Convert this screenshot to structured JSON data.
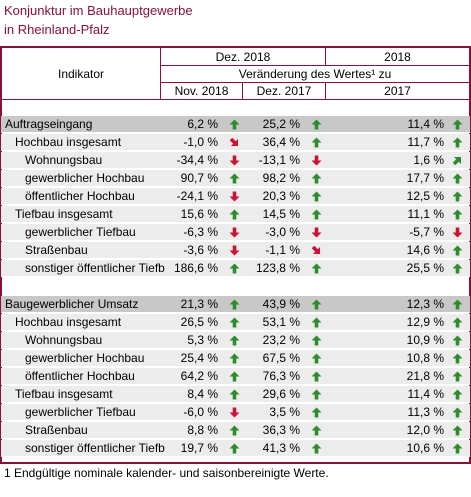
{
  "title": [
    "Konjunktur im Bauhauptgewerbe",
    "in Rheinland-Pfalz"
  ],
  "header": {
    "indicator": "Indikator",
    "period": "Dez. 2018",
    "year": "2018",
    "change": "Veränderung des Wertes¹ zu",
    "columns": [
      "Nov. 2018",
      "Dez. 2017",
      "2017"
    ]
  },
  "sections": [
    {
      "rows": [
        {
          "label": "Auftragseingang",
          "level": 0,
          "cells": [
            {
              "text": "6,2 %",
              "trend": "up"
            },
            {
              "text": "25,2 %",
              "trend": "up"
            },
            {
              "text": "11,4 %",
              "trend": "up"
            }
          ]
        },
        {
          "label": "Hochbau insgesamt",
          "level": 1,
          "cells": [
            {
              "text": "-1,0 %",
              "trend": "down-right"
            },
            {
              "text": "36,4 %",
              "trend": "up"
            },
            {
              "text": "11,7 %",
              "trend": "up"
            }
          ]
        },
        {
          "label": "Wohnungsbau",
          "level": 2,
          "cells": [
            {
              "text": "-34,4 %",
              "trend": "down"
            },
            {
              "text": "-13,1 %",
              "trend": "down"
            },
            {
              "text": "1,6 %",
              "trend": "up-right"
            }
          ]
        },
        {
          "label": "gewerblicher Hochbau",
          "level": 2,
          "cells": [
            {
              "text": "90,7 %",
              "trend": "up"
            },
            {
              "text": "98,2 %",
              "trend": "up"
            },
            {
              "text": "17,7 %",
              "trend": "up"
            }
          ]
        },
        {
          "label": "öffentlicher Hochbau",
          "level": 2,
          "cells": [
            {
              "text": "-24,1 %",
              "trend": "down"
            },
            {
              "text": "20,3 %",
              "trend": "up"
            },
            {
              "text": "12,5 %",
              "trend": "up"
            }
          ]
        },
        {
          "label": "Tiefbau insgesamt",
          "level": 1,
          "cells": [
            {
              "text": "15,6 %",
              "trend": "up"
            },
            {
              "text": "14,5 %",
              "trend": "up"
            },
            {
              "text": "11,1 %",
              "trend": "up"
            }
          ]
        },
        {
          "label": "gewerblicher Tiefbau",
          "level": 2,
          "cells": [
            {
              "text": "-6,3 %",
              "trend": "down"
            },
            {
              "text": "-3,0 %",
              "trend": "down"
            },
            {
              "text": "-5,7 %",
              "trend": "down"
            }
          ]
        },
        {
          "label": "Straßenbau",
          "level": 2,
          "cells": [
            {
              "text": "-3,6 %",
              "trend": "down"
            },
            {
              "text": "-1,1 %",
              "trend": "down-right"
            },
            {
              "text": "14,6 %",
              "trend": "up"
            }
          ]
        },
        {
          "label": "sonstiger öffentlicher Tiefb",
          "level": 2,
          "cells": [
            {
              "text": "186,6 %",
              "trend": "up"
            },
            {
              "text": "123,8 %",
              "trend": "up"
            },
            {
              "text": "25,5 %",
              "trend": "up"
            }
          ]
        }
      ]
    },
    {
      "rows": [
        {
          "label": "Baugewerblicher Umsatz",
          "level": 0,
          "cells": [
            {
              "text": "21,3 %",
              "trend": "up"
            },
            {
              "text": "43,9 %",
              "trend": "up"
            },
            {
              "text": "12,3 %",
              "trend": "up"
            }
          ]
        },
        {
          "label": "Hochbau insgesamt",
          "level": 1,
          "cells": [
            {
              "text": "26,5 %",
              "trend": "up"
            },
            {
              "text": "53,1 %",
              "trend": "up"
            },
            {
              "text": "12,9 %",
              "trend": "up"
            }
          ]
        },
        {
          "label": "Wohnungsbau",
          "level": 2,
          "cells": [
            {
              "text": "5,3 %",
              "trend": "up"
            },
            {
              "text": "23,2 %",
              "trend": "up"
            },
            {
              "text": "10,9 %",
              "trend": "up"
            }
          ]
        },
        {
          "label": "gewerblicher Hochbau",
          "level": 2,
          "cells": [
            {
              "text": "25,4 %",
              "trend": "up"
            },
            {
              "text": "67,5 %",
              "trend": "up"
            },
            {
              "text": "10,8 %",
              "trend": "up"
            }
          ]
        },
        {
          "label": "öffentlicher Hochbau",
          "level": 2,
          "cells": [
            {
              "text": "64,2 %",
              "trend": "up"
            },
            {
              "text": "76,3 %",
              "trend": "up"
            },
            {
              "text": "21,8 %",
              "trend": "up"
            }
          ]
        },
        {
          "label": "Tiefbau insgesamt",
          "level": 1,
          "cells": [
            {
              "text": "8,4 %",
              "trend": "up"
            },
            {
              "text": "29,6 %",
              "trend": "up"
            },
            {
              "text": "11,4 %",
              "trend": "up"
            }
          ]
        },
        {
          "label": "gewerblicher Tiefbau",
          "level": 2,
          "cells": [
            {
              "text": "-6,0 %",
              "trend": "down"
            },
            {
              "text": "3,5 %",
              "trend": "up"
            },
            {
              "text": "11,3 %",
              "trend": "up"
            }
          ]
        },
        {
          "label": "Straßenbau",
          "level": 2,
          "cells": [
            {
              "text": "8,8 %",
              "trend": "up"
            },
            {
              "text": "36,3 %",
              "trend": "up"
            },
            {
              "text": "12,0 %",
              "trend": "up"
            }
          ]
        },
        {
          "label": "sonstiger öffentlicher Tiefb",
          "level": 2,
          "cells": [
            {
              "text": "19,7 %",
              "trend": "up"
            },
            {
              "text": "41,3 %",
              "trend": "up"
            },
            {
              "text": "10,6 %",
              "trend": "up"
            }
          ]
        }
      ]
    }
  ],
  "footnote": "1 Endgültige nominale kalender- und saisonbereinigte Werte."
}
